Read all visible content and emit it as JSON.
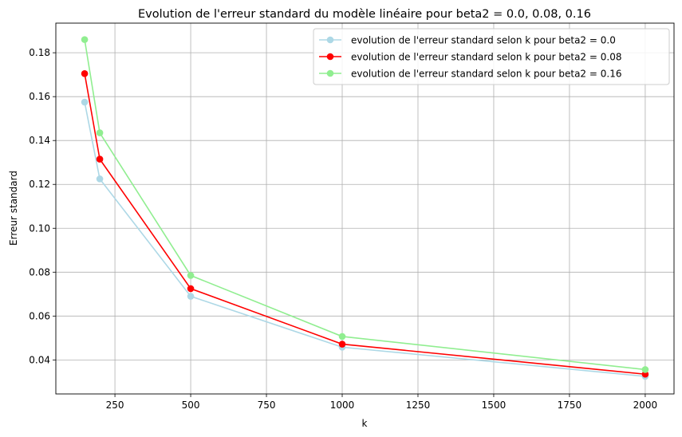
{
  "chart_data": {
    "type": "line",
    "title": "Evolution de l'erreur standard du modèle linéaire pour beta2 = 0.0, 0.08, 0.16",
    "xlabel": "k",
    "ylabel": "Erreur standard",
    "xlim": [
      55,
      2095
    ],
    "ylim": [
      0.0245,
      0.1935
    ],
    "xticks": [
      250,
      500,
      750,
      1000,
      1250,
      1500,
      1750,
      2000
    ],
    "xtick_labels": [
      "250",
      "500",
      "750",
      "1000",
      "1250",
      "1500",
      "1750",
      "2000"
    ],
    "yticks": [
      0.04,
      0.06,
      0.08,
      0.1,
      0.12,
      0.14,
      0.16,
      0.18
    ],
    "ytick_labels": [
      "0.04",
      "0.06",
      "0.08",
      "0.10",
      "0.12",
      "0.14",
      "0.16",
      "0.18"
    ],
    "grid": true,
    "legend_position": "top-right",
    "x": [
      150,
      200,
      500,
      1000,
      2000
    ],
    "series": [
      {
        "name": "evolution de l'erreur standard selon k pour beta2 = 0.0",
        "color": "#add8e6",
        "values": [
          0.1575,
          0.1225,
          0.069,
          0.0458,
          0.0325
        ]
      },
      {
        "name": "evolution de l'erreur standard selon k pour beta2 = 0.08",
        "color": "#ff0000",
        "values": [
          0.1705,
          0.1315,
          0.0725,
          0.0472,
          0.0335
        ]
      },
      {
        "name": "evolution de l'erreur standard selon k pour beta2 = 0.16",
        "color": "#90ee90",
        "values": [
          0.186,
          0.1435,
          0.0785,
          0.0507,
          0.0356
        ]
      }
    ]
  }
}
